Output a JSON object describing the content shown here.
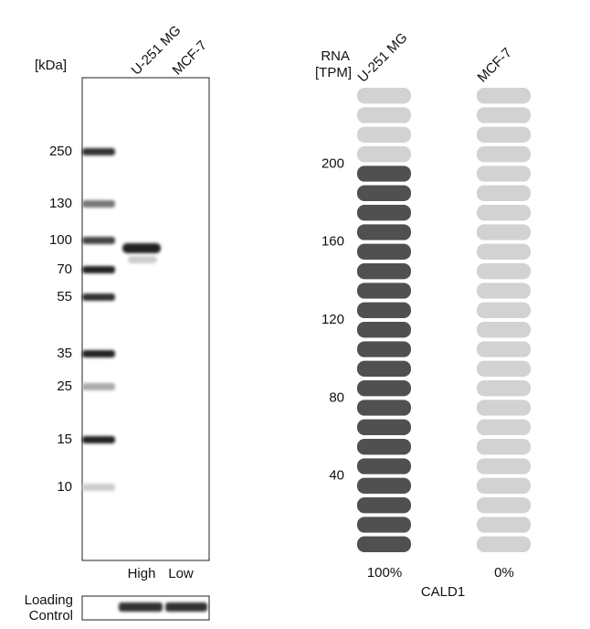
{
  "western_blot": {
    "unit_label": "[kDa]",
    "lanes": [
      "U-251 MG",
      "MCF-7"
    ],
    "markers": [
      250,
      130,
      100,
      70,
      55,
      35,
      25,
      15,
      10
    ],
    "levels": [
      "High",
      "Low"
    ],
    "loading_control": [
      "Loading",
      "Control"
    ]
  },
  "chart_data": {
    "type": "pill",
    "y_label": [
      "RNA",
      "[TPM]"
    ],
    "categories": [
      "U-251 MG",
      "MCF-7"
    ],
    "values": [
      200,
      0
    ],
    "percent_labels": [
      "100%",
      "0%"
    ],
    "ylim": [
      0,
      240
    ],
    "yticks": [
      40,
      80,
      120,
      160,
      200
    ],
    "color": "#505050",
    "empty_color": "#d2d2d2",
    "gene": "CALD1"
  }
}
